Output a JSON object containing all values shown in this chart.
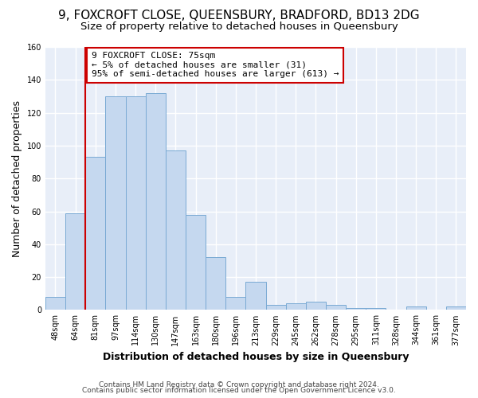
{
  "title": "9, FOXCROFT CLOSE, QUEENSBURY, BRADFORD, BD13 2DG",
  "subtitle": "Size of property relative to detached houses in Queensbury",
  "xlabel": "Distribution of detached houses by size in Queensbury",
  "ylabel": "Number of detached properties",
  "bar_labels": [
    "48sqm",
    "64sqm",
    "81sqm",
    "97sqm",
    "114sqm",
    "130sqm",
    "147sqm",
    "163sqm",
    "180sqm",
    "196sqm",
    "213sqm",
    "229sqm",
    "245sqm",
    "262sqm",
    "278sqm",
    "295sqm",
    "311sqm",
    "328sqm",
    "344sqm",
    "361sqm",
    "377sqm"
  ],
  "bar_values": [
    8,
    59,
    93,
    130,
    130,
    132,
    97,
    58,
    32,
    8,
    17,
    3,
    4,
    5,
    3,
    1,
    1,
    0,
    2,
    0,
    2
  ],
  "bar_color": "#c5d8ef",
  "bar_edge_color": "#7aaad4",
  "vline_color": "#cc0000",
  "annotation_text": "9 FOXCROFT CLOSE: 75sqm\n← 5% of detached houses are smaller (31)\n95% of semi-detached houses are larger (613) →",
  "annotation_box_facecolor": "#ffffff",
  "annotation_box_edgecolor": "#cc0000",
  "ylim": [
    0,
    160
  ],
  "yticks": [
    0,
    20,
    40,
    60,
    80,
    100,
    120,
    140,
    160
  ],
  "bg_color": "#e8eef8",
  "fig_bg_color": "#ffffff",
  "grid_color": "#ffffff",
  "footer1": "Contains HM Land Registry data © Crown copyright and database right 2024.",
  "footer2": "Contains public sector information licensed under the Open Government Licence v3.0.",
  "title_fontsize": 11,
  "subtitle_fontsize": 9.5,
  "axis_label_fontsize": 9,
  "tick_fontsize": 7,
  "annotation_fontsize": 8,
  "footer_fontsize": 6.5,
  "vline_x_index": 2
}
